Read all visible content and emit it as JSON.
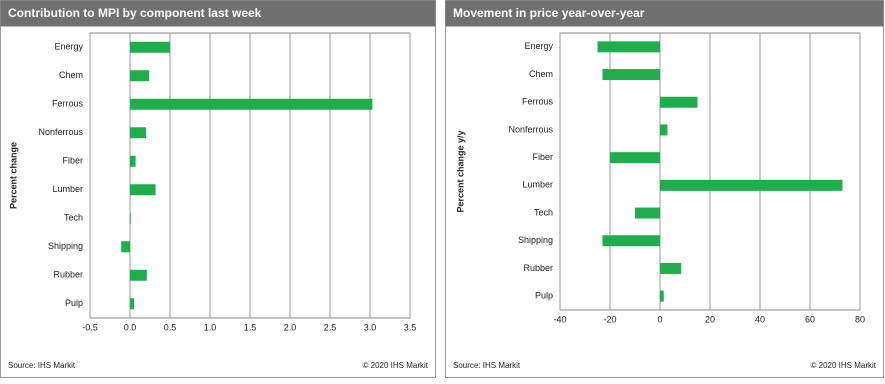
{
  "chart_data": [
    {
      "type": "barh",
      "title": "Contribution  to MPI by component last week",
      "y_label": "Percent change",
      "categories": [
        "Energy",
        "Chem",
        "Ferrous",
        "Nonferrous",
        "Fiber",
        "Lumber",
        "Tech",
        "Shipping",
        "Rubber",
        "Pulp"
      ],
      "values": [
        0.5,
        0.24,
        3.03,
        0.2,
        0.07,
        0.32,
        0.01,
        -0.11,
        0.21,
        0.05
      ],
      "color": "#1fae4b",
      "xlim": [
        -0.5,
        3.5
      ],
      "xticks": [
        -0.5,
        {
          "value": 0,
          "label": "0.0"
        },
        0.5,
        {
          "value": 1,
          "label": "1.0"
        },
        1.5,
        {
          "value": 2,
          "label": "2.0"
        },
        2.5,
        {
          "value": 3,
          "label": "3.0"
        },
        3.5
      ],
      "grid": true,
      "source": "Source:  IHS Markit",
      "copyright": "© 2020  IHS Markit"
    },
    {
      "type": "barh",
      "title": "Movement in price year-over-year",
      "y_label": "Percent change y/y",
      "categories": [
        "Energy",
        "Chem",
        "Ferrous",
        "Nonferrous",
        "Fiber",
        "Lumber",
        "Tech",
        "Shipping",
        "Rubber",
        "Pulp"
      ],
      "values": [
        -25,
        -23,
        15,
        3,
        -20,
        73,
        -10,
        -23,
        8.5,
        1.5
      ],
      "color": "#1fae4b",
      "xlim": [
        -40,
        80
      ],
      "xticks": [
        -40,
        -20,
        0,
        20,
        40,
        60,
        80
      ],
      "grid": true,
      "source": "Source:  IHS Markit",
      "copyright": "© 2020  IHS Markit"
    }
  ]
}
